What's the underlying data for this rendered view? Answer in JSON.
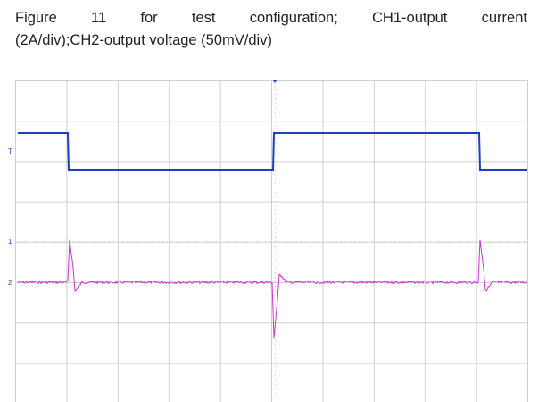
{
  "figure": {
    "caption_lines": [
      "Figure 11 for test configuration; CH1-output current",
      "(2A/div);CH2-output voltage (50mV/div)"
    ],
    "markers": {
      "trigger": "T",
      "ch1": "1",
      "ch2": "2"
    }
  }
}
